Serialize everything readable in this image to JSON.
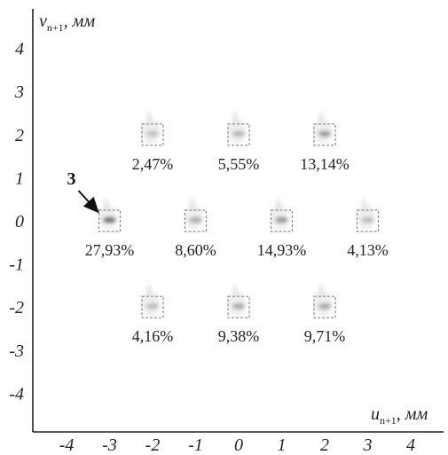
{
  "chart_data": {
    "type": "scatter",
    "x_axis": {
      "variable": "u",
      "subscript": "n+1",
      "unit": ", мм",
      "ticks": [
        "-4",
        "-3",
        "-2",
        "-1",
        "0",
        "1",
        "2",
        "3",
        "4"
      ]
    },
    "y_axis": {
      "variable": "v",
      "subscript": "n+1",
      "unit": ", мм",
      "ticks": [
        "4",
        "3",
        "2",
        "1",
        "0",
        "-1",
        "-2",
        "-3",
        "-4"
      ]
    },
    "xlim": [
      -4.5,
      4.8
    ],
    "ylim": [
      -4.8,
      4.8
    ],
    "points": [
      {
        "x": -2,
        "y": 2,
        "label": "2,47%",
        "value": 2.47
      },
      {
        "x": 0,
        "y": 2,
        "label": "5,55%",
        "value": 5.55
      },
      {
        "x": 2,
        "y": 2,
        "label": "13,14%",
        "value": 13.14
      },
      {
        "x": -3,
        "y": 0,
        "label": "27,93%",
        "value": 27.93
      },
      {
        "x": -1,
        "y": 0,
        "label": "8,60%",
        "value": 8.6
      },
      {
        "x": 1,
        "y": 0,
        "label": "14,93%",
        "value": 14.93
      },
      {
        "x": 3,
        "y": 0,
        "label": "4,13%",
        "value": 4.13
      },
      {
        "x": -2,
        "y": -2,
        "label": "4,16%",
        "value": 4.16
      },
      {
        "x": 0,
        "y": -2,
        "label": "9,38%",
        "value": 9.38
      },
      {
        "x": 2,
        "y": -2,
        "label": "9,71%",
        "value": 9.71
      }
    ],
    "annotation": {
      "text": "3",
      "target": {
        "x": -3,
        "y": 0
      }
    },
    "grid": false,
    "marker": "dashed-square",
    "colors": {
      "axis": "#222222",
      "marker": "#8a8a8a",
      "blob": "#555555",
      "text": "#222222"
    }
  }
}
